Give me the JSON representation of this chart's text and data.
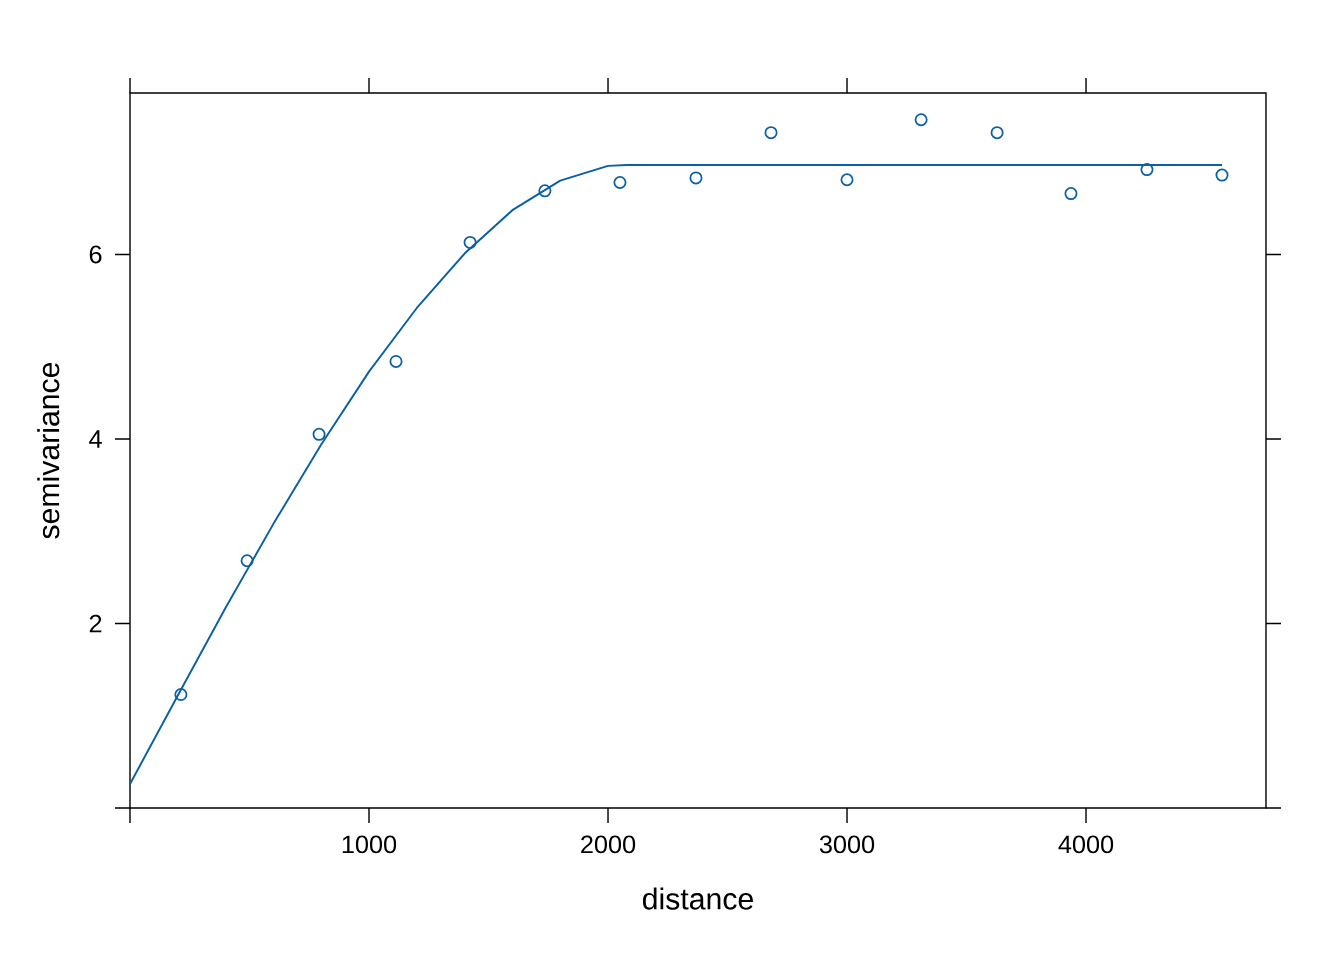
{
  "chart_data": {
    "type": "scatter",
    "xlabel": "distance",
    "ylabel": "semivariance",
    "xlim": [
      0,
      4753
    ],
    "ylim": [
      0,
      7.75
    ],
    "xticks": [
      {
        "value": 0,
        "label": null
      },
      1000,
      2000,
      3000,
      4000
    ],
    "yticks": [
      {
        "value": 0,
        "label": null
      },
      2,
      4,
      6
    ],
    "series": [
      {
        "color": "#0b5fa5",
        "marker": "circle",
        "x": [
          213,
          490,
          791,
          1113,
          1423,
          1736,
          2050,
          2368,
          2682,
          3000,
          3310,
          3628,
          3937,
          4255,
          4569
        ],
        "values": [
          1.23,
          2.68,
          4.05,
          4.84,
          6.13,
          6.69,
          6.78,
          6.83,
          7.32,
          6.81,
          7.46,
          7.32,
          6.66,
          6.92,
          6.86
        ]
      },
      {
        "type": "line",
        "color": "#0b5fa5",
        "marker": "none",
        "line_style": "solid",
        "x": [
          0,
          200,
          400,
          600,
          800,
          1000,
          1200,
          1400,
          1600,
          1800,
          2000,
          2080,
          4569
        ],
        "values": [
          0.26,
          1.22,
          2.17,
          3.08,
          3.94,
          4.73,
          5.42,
          6.01,
          6.48,
          6.8,
          6.96,
          6.97,
          6.97
        ]
      }
    ]
  }
}
